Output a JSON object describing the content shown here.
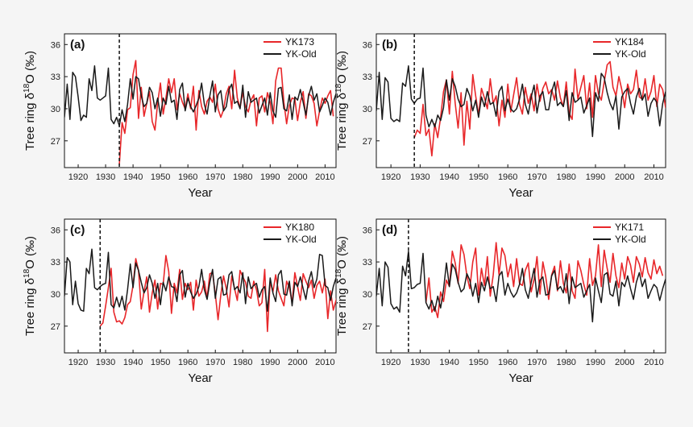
{
  "colors": {
    "yk_series": "#e8272a",
    "old_series": "#1a1a1a",
    "cut_line": "#111111"
  },
  "axis": {
    "x_tick_labels": [
      "1920",
      "1930",
      "1940",
      "1950",
      "1960",
      "1970",
      "1980",
      "1990",
      "2000",
      "2010"
    ],
    "y_tick_labels": [
      "27",
      "30",
      "33",
      "36"
    ],
    "xlabel": "Year",
    "ylabel_prefix": "Tree ring δ",
    "ylabel_sup": "18",
    "ylabel_suffix": "O (‰)"
  },
  "chart_data": [
    {
      "type": "line",
      "panel": "(a)",
      "xlim": [
        1915,
        2014
      ],
      "ylim": [
        24.5,
        37
      ],
      "legend": [
        "YK173",
        "YK-Old"
      ],
      "legend_position": "top-right",
      "cut_year": 1935,
      "series": [
        {
          "name": "YK173",
          "start_year": 1935,
          "values": [
            24.8,
            28.7,
            27.7,
            29.9,
            30.1,
            33.2,
            34.5,
            29.1,
            32.0,
            29.3,
            30.5,
            31.6,
            28.8,
            28.0,
            30.6,
            32.4,
            29.5,
            31.0,
            32.8,
            31.5,
            32.8,
            29.9,
            31.4,
            30.6,
            30.0,
            31.4,
            30.0,
            32.1,
            28.0,
            31.7,
            30.2,
            29.5,
            30.7,
            31.1,
            30.6,
            32.3,
            30.0,
            29.2,
            29.9,
            31.4,
            32.1,
            30.0,
            33.6,
            31.0,
            30.1,
            31.5,
            30.2,
            29.7,
            30.8,
            31.3,
            28.4,
            31.0,
            31.2,
            29.7,
            31.5,
            30.6,
            28.6,
            32.6,
            33.8,
            33.8,
            30.6,
            28.6,
            30.3,
            31.0,
            30.9,
            28.9,
            30.6,
            31.6,
            29.1,
            31.4,
            31.2,
            30.5,
            28.4,
            29.8,
            31.0,
            30.5,
            31.2,
            31.7,
            29.3
          ]
        },
        {
          "name": "YK-Old",
          "start_year": 1915,
          "values": [
            29.2,
            32.3,
            29.0,
            33.4,
            33.0,
            31.1,
            28.9,
            29.4,
            29.2,
            32.8,
            31.7,
            34.0,
            31.0,
            30.8,
            31.0,
            31.2,
            33.8,
            29.0,
            28.6,
            29.2,
            28.4,
            29.9,
            28.8,
            30.4,
            32.8,
            30.9,
            33.0,
            32.8,
            31.2,
            30.2,
            30.5,
            32.0,
            31.5,
            30.0,
            31.0,
            29.3,
            31.0,
            30.4,
            32.1,
            30.6,
            30.8,
            29.0,
            31.8,
            32.4,
            29.8,
            31.0,
            30.2,
            29.7,
            30.3,
            31.0,
            32.4,
            30.4,
            29.5,
            31.2,
            32.6,
            29.7,
            31.3,
            31.7,
            29.8,
            30.2,
            31.8,
            32.3,
            30.5,
            30.7,
            30.0,
            32.2,
            29.2,
            31.6,
            30.6,
            30.8,
            31.0,
            29.6,
            30.3,
            31.0,
            29.4,
            31.5,
            29.8,
            29.2,
            31.9,
            32.0,
            30.0,
            29.8,
            31.3,
            29.0,
            31.1,
            30.8,
            31.8,
            30.6,
            29.4,
            31.2,
            32.1,
            30.8,
            31.4,
            29.7,
            30.3,
            31.0,
            30.6,
            29.4,
            30.6,
            31.4
          ]
        }
      ]
    },
    {
      "type": "line",
      "panel": "(b)",
      "xlim": [
        1915,
        2014
      ],
      "ylim": [
        24.5,
        37
      ],
      "legend": [
        "YK184",
        "YK-Old"
      ],
      "legend_position": "top-right",
      "cut_year": 1928,
      "series": [
        {
          "name": "YK184",
          "start_year": 1928,
          "values": [
            27.3,
            28.0,
            27.7,
            30.4,
            27.5,
            28.1,
            25.6,
            28.6,
            27.3,
            29.2,
            31.6,
            32.7,
            29.5,
            33.5,
            30.5,
            28.2,
            31.5,
            26.6,
            30.7,
            28.1,
            33.2,
            31.2,
            29.4,
            31.9,
            31.0,
            30.0,
            32.8,
            30.5,
            31.2,
            28.4,
            30.8,
            29.2,
            32.3,
            29.7,
            31.3,
            32.9,
            30.4,
            29.5,
            32.0,
            30.5,
            31.4,
            29.8,
            32.3,
            30.7,
            31.9,
            32.5,
            31.4,
            31.8,
            30.8,
            32.6,
            31.0,
            30.2,
            32.5,
            29.6,
            29.0,
            33.7,
            30.9,
            32.0,
            33.1,
            30.0,
            32.4,
            29.2,
            33.1,
            31.4,
            30.8,
            32.5,
            34.1,
            34.4,
            32.0,
            31.2,
            33.0,
            31.8,
            30.1,
            32.3,
            31.4,
            31.8,
            33.6,
            31.1,
            30.9,
            32.8,
            30.8,
            31.6,
            33.1,
            30.2,
            32.3,
            31.8,
            30.1,
            32.3,
            32.6
          ]
        },
        {
          "name": "YK-Old",
          "start_year": 1915,
          "values": [
            29.8,
            33.4,
            29.0,
            32.9,
            32.5,
            29.1,
            28.8,
            29.0,
            28.8,
            32.4,
            32.1,
            34.0,
            30.9,
            30.5,
            30.9,
            31.0,
            33.8,
            29.4,
            28.3,
            29.0,
            28.3,
            29.4,
            28.9,
            30.1,
            32.7,
            30.8,
            32.8,
            32.1,
            30.9,
            30.2,
            30.4,
            31.9,
            31.2,
            29.8,
            30.8,
            29.2,
            31.1,
            30.2,
            31.6,
            30.4,
            30.6,
            29.3,
            31.6,
            32.1,
            29.8,
            30.9,
            30.0,
            29.7,
            30.0,
            30.9,
            32.3,
            30.4,
            29.5,
            31.1,
            32.2,
            29.6,
            31.2,
            31.6,
            29.9,
            29.9,
            31.6,
            32.5,
            30.3,
            30.6,
            30.2,
            31.7,
            28.9,
            31.5,
            30.6,
            30.8,
            31.1,
            29.6,
            30.3,
            31.0,
            27.4,
            31.5,
            30.7,
            33.3,
            32.9,
            31.5,
            30.5,
            29.9,
            31.2,
            28.1,
            31.1,
            31.6,
            31.9,
            30.5,
            29.5,
            31.1,
            31.9,
            30.8,
            31.4,
            29.3,
            30.5,
            31.0,
            30.6,
            28.4,
            30.5,
            31.6
          ]
        }
      ]
    },
    {
      "type": "line",
      "panel": "(c)",
      "xlim": [
        1915,
        2014
      ],
      "ylim": [
        24.5,
        37
      ],
      "legend": [
        "YK180",
        "YK-Old"
      ],
      "legend_position": "top-right",
      "cut_year": 1928,
      "series": [
        {
          "name": "YK180",
          "start_year": 1928,
          "values": [
            27.0,
            27.3,
            28.9,
            30.6,
            32.4,
            28.3,
            27.4,
            27.5,
            27.2,
            27.8,
            29.0,
            29.3,
            30.8,
            33.3,
            32.2,
            28.6,
            30.2,
            31.6,
            28.3,
            30.1,
            31.3,
            28.6,
            31.0,
            30.9,
            33.6,
            32.1,
            28.2,
            31.0,
            30.1,
            32.3,
            29.5,
            31.0,
            30.4,
            31.1,
            28.5,
            31.3,
            29.8,
            30.2,
            31.2,
            29.6,
            31.9,
            32.0,
            30.0,
            27.6,
            29.9,
            31.7,
            30.5,
            28.8,
            31.7,
            30.5,
            29.4,
            32.2,
            31.6,
            31.1,
            29.8,
            29.6,
            31.2,
            30.4,
            28.9,
            29.2,
            32.3,
            26.5,
            31.2,
            30.2,
            31.8,
            30.3,
            29.6,
            28.9,
            31.2,
            30.6,
            29.2,
            32.0,
            30.7,
            29.4,
            31.9,
            31.2,
            30.6,
            31.3,
            29.6,
            30.8,
            31.2,
            30.1,
            31.4,
            27.7,
            30.3,
            28.5,
            29.4,
            30.5
          ]
        },
        {
          "name": "YK-Old",
          "start_year": 1915,
          "values": [
            29.8,
            33.4,
            33.0,
            29.0,
            31.2,
            29.1,
            28.5,
            28.4,
            32.4,
            31.9,
            34.2,
            30.6,
            30.4,
            30.7,
            30.9,
            31.0,
            33.9,
            29.0,
            28.7,
            29.7,
            28.8,
            29.8,
            28.5,
            30.4,
            32.8,
            30.6,
            32.9,
            32.2,
            31.1,
            30.1,
            30.6,
            31.8,
            31.0,
            29.6,
            31.0,
            29.0,
            31.1,
            30.3,
            31.6,
            30.7,
            30.6,
            29.3,
            31.8,
            32.2,
            29.7,
            31.0,
            30.2,
            29.6,
            30.0,
            30.7,
            32.3,
            30.4,
            29.5,
            31.1,
            32.3,
            29.6,
            31.4,
            31.6,
            29.9,
            30.0,
            31.8,
            32.1,
            30.4,
            30.7,
            30.1,
            32.0,
            29.1,
            31.6,
            30.5,
            30.8,
            31.0,
            29.7,
            30.4,
            30.7,
            28.4,
            31.5,
            30.1,
            29.3,
            31.8,
            32.2,
            30.0,
            29.9,
            31.2,
            28.9,
            31.1,
            30.7,
            31.6,
            30.5,
            29.5,
            31.2,
            32.1,
            30.6,
            31.4,
            33.7,
            33.6,
            30.8,
            30.6,
            29.4,
            30.7,
            31.5
          ]
        }
      ]
    },
    {
      "type": "line",
      "panel": "(d)",
      "xlim": [
        1915,
        2014
      ],
      "ylim": [
        24.5,
        37
      ],
      "legend": [
        "YK171",
        "YK-Old"
      ],
      "legend_position": "top-right",
      "cut_year": 1926,
      "series": [
        {
          "name": "YK171",
          "start_year": 1932,
          "values": [
            29.2,
            31.5,
            28.3,
            28.8,
            27.8,
            30.2,
            29.3,
            31.3,
            30.7,
            34.0,
            32.9,
            31.0,
            34.6,
            33.7,
            31.7,
            30.5,
            33.0,
            34.3,
            29.9,
            32.4,
            30.8,
            33.5,
            29.8,
            31.8,
            34.8,
            31.8,
            34.3,
            33.6,
            31.6,
            32.8,
            30.7,
            33.3,
            31.0,
            30.8,
            32.2,
            32.9,
            30.2,
            31.4,
            33.5,
            30.0,
            33.0,
            31.6,
            29.5,
            31.8,
            32.6,
            30.3,
            33.1,
            31.0,
            30.1,
            32.8,
            30.3,
            29.6,
            33.1,
            32.2,
            30.9,
            29.9,
            33.3,
            30.8,
            31.7,
            34.6,
            30.7,
            34.1,
            32.4,
            31.1,
            33.8,
            31.7,
            30.6,
            32.9,
            31.4,
            33.5,
            32.7,
            31.1,
            33.5,
            32.8,
            31.6,
            33.4,
            32.0,
            31.4,
            33.2,
            31.9,
            32.6,
            31.7
          ]
        },
        {
          "name": "YK-Old",
          "start_year": 1915,
          "values": [
            29.8,
            32.4,
            28.9,
            33.0,
            32.5,
            29.1,
            28.6,
            28.8,
            28.3,
            32.6,
            31.7,
            34.0,
            30.5,
            30.6,
            30.9,
            31.0,
            33.8,
            29.2,
            28.6,
            29.4,
            28.4,
            29.8,
            28.7,
            30.4,
            32.9,
            30.7,
            32.8,
            32.3,
            31.1,
            30.2,
            30.5,
            31.9,
            31.3,
            29.8,
            31.0,
            29.2,
            31.1,
            30.3,
            31.6,
            30.5,
            30.7,
            29.3,
            31.7,
            32.1,
            29.9,
            31.0,
            30.2,
            29.7,
            30.1,
            30.9,
            32.4,
            30.4,
            29.6,
            31.1,
            32.4,
            29.7,
            31.3,
            31.6,
            29.9,
            30.0,
            31.7,
            32.2,
            30.4,
            30.7,
            30.1,
            31.9,
            29.1,
            31.6,
            30.6,
            30.8,
            31.0,
            29.7,
            30.3,
            30.9,
            27.4,
            31.5,
            30.3,
            29.2,
            31.8,
            32.0,
            30.0,
            29.8,
            31.2,
            28.9,
            31.1,
            30.7,
            31.7,
            30.5,
            29.5,
            31.1,
            32.0,
            30.7,
            31.4,
            29.6,
            30.3,
            30.9,
            30.6,
            29.4,
            30.5,
            31.4
          ]
        }
      ]
    }
  ]
}
